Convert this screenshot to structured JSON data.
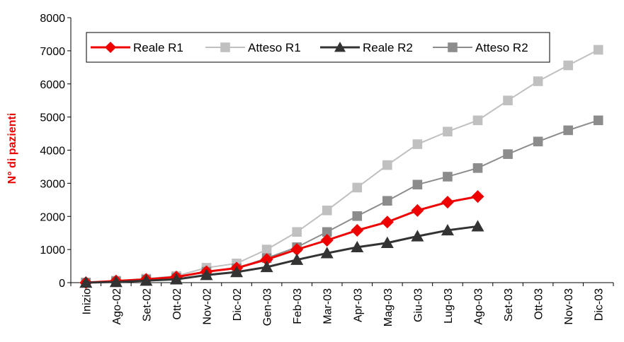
{
  "chart_data": {
    "type": "line",
    "title": "",
    "xlabel": "",
    "ylabel": "N° di pazienti",
    "ylim": [
      0,
      8000
    ],
    "yticks": [
      0,
      1000,
      2000,
      3000,
      4000,
      5000,
      6000,
      7000,
      8000
    ],
    "grid": false,
    "legend_position": "top",
    "categories": [
      "Inizio",
      "Ago-02",
      "Set-02",
      "Ott-02",
      "Nov-02",
      "Dic-02",
      "Gen-03",
      "Feb-03",
      "Mar-03",
      "Apr-03",
      "Mag-03",
      "Giu-03",
      "Lug-03",
      "Ago-03",
      "Set-03",
      "Ott-03",
      "Nov-03",
      "Dic-03"
    ],
    "series": [
      {
        "name": "Atteso R1",
        "color": "#c0c0c0",
        "marker": "square",
        "values": [
          0,
          60,
          120,
          200,
          450,
          580,
          1000,
          1530,
          2180,
          2870,
          3550,
          4180,
          4560,
          4900,
          5500,
          6080,
          6560,
          7030
        ]
      },
      {
        "name": "Atteso R2",
        "color": "#8c8c8c",
        "marker": "square",
        "values": [
          0,
          40,
          90,
          150,
          330,
          430,
          740,
          1070,
          1530,
          2010,
          2470,
          2960,
          3200,
          3460,
          3880,
          4260,
          4600,
          4900
        ]
      },
      {
        "name": "Reale R1",
        "color": "#ee0000",
        "marker": "diamond",
        "values": [
          0,
          50,
          100,
          170,
          330,
          440,
          700,
          1000,
          1280,
          1580,
          1830,
          2180,
          2430,
          2600,
          null,
          null,
          null,
          null
        ]
      },
      {
        "name": "Reale R2",
        "color": "#333333",
        "marker": "triangle",
        "values": [
          0,
          20,
          60,
          100,
          230,
          320,
          470,
          690,
          890,
          1070,
          1200,
          1400,
          1580,
          1700,
          null,
          null,
          null,
          null
        ]
      }
    ],
    "legend_order": [
      "Reale R1",
      "Atteso R1",
      "Reale R2",
      "Atteso R2"
    ]
  }
}
